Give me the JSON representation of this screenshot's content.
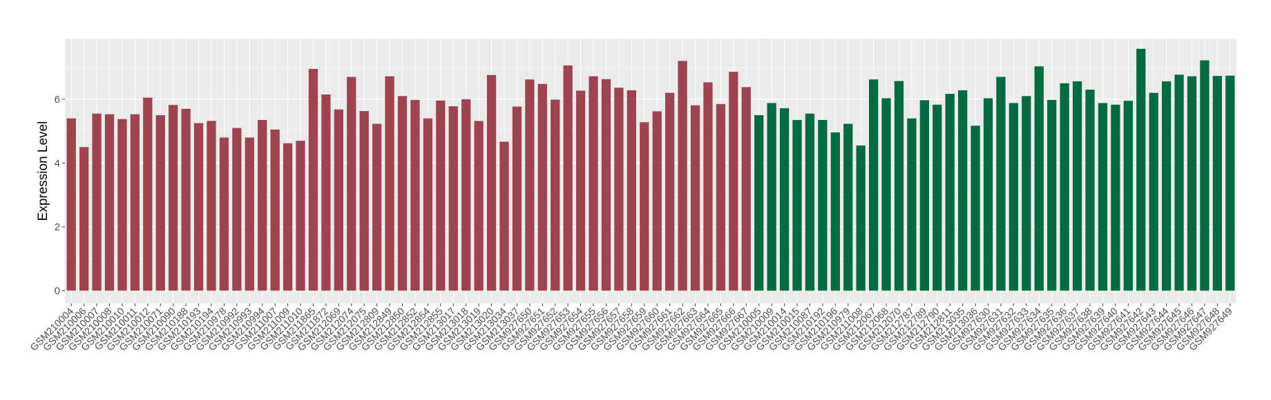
{
  "chart_data": {
    "type": "bar",
    "title": "",
    "xlabel": "",
    "ylabel": "Expression Level",
    "ylim": [
      -0.4,
      7.9
    ],
    "yticks": [
      0,
      2,
      4,
      6
    ],
    "grid": true,
    "legend": "none",
    "colors": {
      "group1": "#9e4350",
      "group2": "#046a40",
      "panel": "#ebebeb",
      "grid": "#ffffff"
    },
    "categories": [
      "GSM210004",
      "GSM210006",
      "GSM210007",
      "GSM210008",
      "GSM210010",
      "GSM210011",
      "GSM210012",
      "GSM210071",
      "GSM210090",
      "GSM210188",
      "GSM210193",
      "GSM210194",
      "GSM210978",
      "GSM210992",
      "GSM210993",
      "GSM210994",
      "GSM211007",
      "GSM211009",
      "GSM211010",
      "GSM211865",
      "GSM211872",
      "GSM212069",
      "GSM212074",
      "GSM212075",
      "GSM212809",
      "GSM212849",
      "GSM212850",
      "GSM212852",
      "GSM212854",
      "GSM212855",
      "GSM213017",
      "GSM213018",
      "GSM213019",
      "GSM213020",
      "GSM213034",
      "GSM213037",
      "GSM927650",
      "GSM927651",
      "GSM927652",
      "GSM927653",
      "GSM927654",
      "GSM927655",
      "GSM927656",
      "GSM927657",
      "GSM927658",
      "GSM927659",
      "GSM927660",
      "GSM927661",
      "GSM927662",
      "GSM927663",
      "GSM927664",
      "GSM927665",
      "GSM927666",
      "GSM927667",
      "GSM210005",
      "GSM210009",
      "GSM210014",
      "GSM210015",
      "GSM210087",
      "GSM210192",
      "GSM210196",
      "GSM210979",
      "GSM211008",
      "GSM212067",
      "GSM212068",
      "GSM212070",
      "GSM212787",
      "GSM212789",
      "GSM212790",
      "GSM212811",
      "GSM213035",
      "GSM213036",
      "GSM927630",
      "GSM927631",
      "GSM927632",
      "GSM927633",
      "GSM927634",
      "GSM927635",
      "GSM927636",
      "GSM927637",
      "GSM927638",
      "GSM927639",
      "GSM927640",
      "GSM927641",
      "GSM927642",
      "GSM927643",
      "GSM927644",
      "GSM927645",
      "GSM927646",
      "GSM927647",
      "GSM927648",
      "GSM927649"
    ],
    "values": [
      5.4,
      4.5,
      5.55,
      5.53,
      5.38,
      5.53,
      6.05,
      5.5,
      5.82,
      5.7,
      5.25,
      5.32,
      4.8,
      5.1,
      4.8,
      5.35,
      5.05,
      4.62,
      4.7,
      6.95,
      6.15,
      5.68,
      6.7,
      5.63,
      5.23,
      6.72,
      6.1,
      5.98,
      5.4,
      5.96,
      5.78,
      6.0,
      5.32,
      6.76,
      4.67,
      5.77,
      6.62,
      6.48,
      5.99,
      7.06,
      6.27,
      6.72,
      6.63,
      6.36,
      6.28,
      5.28,
      5.62,
      6.2,
      7.2,
      5.81,
      6.53,
      5.85,
      6.86,
      6.38,
      5.5,
      5.88,
      5.72,
      5.35,
      5.55,
      5.35,
      4.96,
      5.23,
      4.55,
      6.62,
      6.03,
      6.57,
      5.4,
      5.97,
      5.83,
      6.17,
      6.28,
      5.17,
      6.03,
      6.7,
      5.88,
      6.1,
      7.03,
      5.98,
      6.5,
      6.56,
      6.3,
      5.88,
      5.83,
      5.95,
      7.58,
      6.2,
      6.56,
      6.77,
      6.72,
      7.22,
      6.73,
      6.74
    ],
    "groups": [
      "group1",
      "group1",
      "group1",
      "group1",
      "group1",
      "group1",
      "group1",
      "group1",
      "group1",
      "group1",
      "group1",
      "group1",
      "group1",
      "group1",
      "group1",
      "group1",
      "group1",
      "group1",
      "group1",
      "group1",
      "group1",
      "group1",
      "group1",
      "group1",
      "group1",
      "group1",
      "group1",
      "group1",
      "group1",
      "group1",
      "group1",
      "group1",
      "group1",
      "group1",
      "group1",
      "group1",
      "group1",
      "group1",
      "group1",
      "group1",
      "group1",
      "group1",
      "group1",
      "group1",
      "group1",
      "group1",
      "group1",
      "group1",
      "group1",
      "group1",
      "group1",
      "group1",
      "group1",
      "group1",
      "group2",
      "group2",
      "group2",
      "group2",
      "group2",
      "group2",
      "group2",
      "group2",
      "group2",
      "group2",
      "group2",
      "group2",
      "group2",
      "group2",
      "group2",
      "group2",
      "group2",
      "group2",
      "group2",
      "group2",
      "group2",
      "group2",
      "group2",
      "group2",
      "group2",
      "group2",
      "group2",
      "group2",
      "group2",
      "group2",
      "group2",
      "group2",
      "group2",
      "group2",
      "group2",
      "group2",
      "group2",
      "group2"
    ]
  }
}
